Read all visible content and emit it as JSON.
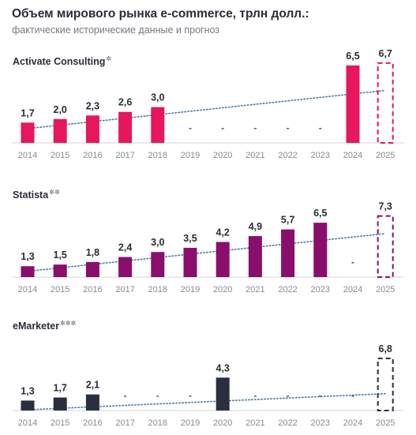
{
  "header": {
    "title": "Объем мирового рынка e-commerce, трлн долл.:",
    "subtitle": "фактические исторические данные и прогноз"
  },
  "colors": {
    "activate": "#e6175c",
    "statista": "#8a0e6b",
    "emarketer": "#2a2f40",
    "trend": "#4a7aa8",
    "axis": "#d5d5da"
  },
  "chart_data": [
    {
      "type": "bar",
      "name": "Activate Consulting",
      "title_mark": "*",
      "categories": [
        "2014",
        "2015",
        "2016",
        "2017",
        "2018",
        "2019",
        "2020",
        "2021",
        "2022",
        "2023",
        "2024",
        "2025"
      ],
      "values": [
        1.7,
        2.0,
        2.3,
        2.6,
        3.0,
        null,
        null,
        null,
        null,
        null,
        6.5,
        6.7
      ],
      "labels": [
        "1,7",
        "2,0",
        "2,3",
        "2,6",
        "3,0",
        "-",
        "-",
        "-",
        "-",
        "-",
        "6,5",
        "6,7"
      ],
      "forecast": [
        false,
        false,
        false,
        false,
        false,
        false,
        false,
        false,
        false,
        false,
        false,
        true
      ],
      "trend": [
        1.2,
        4.4
      ]
    },
    {
      "type": "bar",
      "name": "Statista",
      "title_mark": "**",
      "categories": [
        "2014",
        "2015",
        "2016",
        "2017",
        "2018",
        "2019",
        "2020",
        "2021",
        "2022",
        "2023",
        "2024",
        "2025"
      ],
      "values": [
        1.3,
        1.5,
        1.8,
        2.4,
        3.0,
        3.5,
        4.2,
        4.9,
        5.7,
        6.5,
        null,
        7.3
      ],
      "labels": [
        "1,3",
        "1,5",
        "1,8",
        "2,4",
        "3,0",
        "3,5",
        "4,2",
        "4,9",
        "5,7",
        "6,5",
        "-",
        "7,3"
      ],
      "forecast": [
        false,
        false,
        false,
        false,
        false,
        false,
        false,
        false,
        false,
        false,
        false,
        true
      ],
      "trend": [
        0.7,
        5.2
      ]
    },
    {
      "type": "bar",
      "name": "eMarketer",
      "title_mark": "***",
      "categories": [
        "2014",
        "2015",
        "2016",
        "2017",
        "2018",
        "2019",
        "2020",
        "2021",
        "2022",
        "2023",
        "2024",
        "2025"
      ],
      "values": [
        1.3,
        1.7,
        2.1,
        null,
        null,
        null,
        4.3,
        null,
        null,
        null,
        null,
        6.8
      ],
      "labels": [
        "1,3",
        "1,7",
        "2,1",
        "-",
        "-",
        "-",
        "4,3",
        "-",
        "-",
        "-",
        "-",
        "6,8"
      ],
      "forecast": [
        false,
        false,
        false,
        false,
        false,
        false,
        false,
        false,
        false,
        false,
        false,
        true
      ],
      "trend": [
        0.1,
        2.2
      ]
    }
  ]
}
